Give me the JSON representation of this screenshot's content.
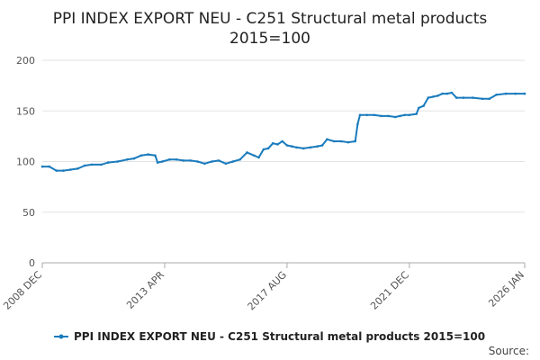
{
  "chart_data": {
    "type": "line",
    "title_line1": "PPI INDEX EXPORT NEU - C251 Structural metal products",
    "title_line2": "2015=100",
    "xlabel": "",
    "ylabel": "",
    "ylim": [
      0,
      200
    ],
    "yticks": [
      0,
      50,
      100,
      150,
      200
    ],
    "xlim": [
      "2008-12",
      "2026-01"
    ],
    "xticks": [
      {
        "date": "2008-12",
        "label": "2008 DEC"
      },
      {
        "date": "2013-04",
        "label": "2013 APR"
      },
      {
        "date": "2017-08",
        "label": "2017 AUG"
      },
      {
        "date": "2021-12",
        "label": "2021 DEC"
      },
      {
        "date": "2026-01",
        "label": "2026 JAN"
      }
    ],
    "grid": true,
    "legend_position": "bottom",
    "series": [
      {
        "name": "PPI INDEX EXPORT NEU - C251 Structural metal products 2015=100",
        "color": "#1a7bbd",
        "points": [
          [
            "2008-12",
            95
          ],
          [
            "2009-03",
            95
          ],
          [
            "2009-06",
            91
          ],
          [
            "2009-09",
            91
          ],
          [
            "2009-12",
            92
          ],
          [
            "2010-03",
            93
          ],
          [
            "2010-06",
            96
          ],
          [
            "2010-09",
            97
          ],
          [
            "2011-01",
            97
          ],
          [
            "2011-04",
            99
          ],
          [
            "2011-08",
            100
          ],
          [
            "2011-12",
            102
          ],
          [
            "2012-03",
            103
          ],
          [
            "2012-06",
            106
          ],
          [
            "2012-09",
            107
          ],
          [
            "2012-12",
            106
          ],
          [
            "2013-01",
            99
          ],
          [
            "2013-03",
            100
          ],
          [
            "2013-06",
            102
          ],
          [
            "2013-09",
            102
          ],
          [
            "2013-12",
            101
          ],
          [
            "2014-03",
            101
          ],
          [
            "2014-06",
            100
          ],
          [
            "2014-09",
            98
          ],
          [
            "2014-12",
            100
          ],
          [
            "2015-03",
            101
          ],
          [
            "2015-06",
            98
          ],
          [
            "2015-09",
            100
          ],
          [
            "2015-12",
            102
          ],
          [
            "2016-03",
            109
          ],
          [
            "2016-06",
            106
          ],
          [
            "2016-08",
            104
          ],
          [
            "2016-10",
            112
          ],
          [
            "2016-12",
            113
          ],
          [
            "2017-02",
            118
          ],
          [
            "2017-04",
            117
          ],
          [
            "2017-06",
            120
          ],
          [
            "2017-08",
            116
          ],
          [
            "2017-10",
            115
          ],
          [
            "2017-12",
            114
          ],
          [
            "2018-03",
            113
          ],
          [
            "2018-06",
            114
          ],
          [
            "2018-09",
            115
          ],
          [
            "2018-11",
            116
          ],
          [
            "2019-01",
            122
          ],
          [
            "2019-04",
            120
          ],
          [
            "2019-07",
            120
          ],
          [
            "2019-10",
            119
          ],
          [
            "2020-01",
            120
          ],
          [
            "2020-02",
            137
          ],
          [
            "2020-03",
            146
          ],
          [
            "2020-06",
            146
          ],
          [
            "2020-09",
            146
          ],
          [
            "2020-12",
            145
          ],
          [
            "2021-03",
            145
          ],
          [
            "2021-06",
            144
          ],
          [
            "2021-08",
            145
          ],
          [
            "2021-10",
            146
          ],
          [
            "2021-12",
            146
          ],
          [
            "2022-03",
            147
          ],
          [
            "2022-04",
            153
          ],
          [
            "2022-06",
            155
          ],
          [
            "2022-08",
            163
          ],
          [
            "2022-10",
            164
          ],
          [
            "2022-12",
            165
          ],
          [
            "2023-02",
            167
          ],
          [
            "2023-04",
            167
          ],
          [
            "2023-06",
            168
          ],
          [
            "2023-08",
            163
          ],
          [
            "2023-11",
            163
          ],
          [
            "2024-03",
            163
          ],
          [
            "2024-07",
            162
          ],
          [
            "2024-10",
            162
          ],
          [
            "2025-01",
            166
          ],
          [
            "2025-05",
            167
          ],
          [
            "2025-09",
            167
          ],
          [
            "2026-01",
            167
          ]
        ]
      }
    ],
    "source_label": "Source:"
  }
}
